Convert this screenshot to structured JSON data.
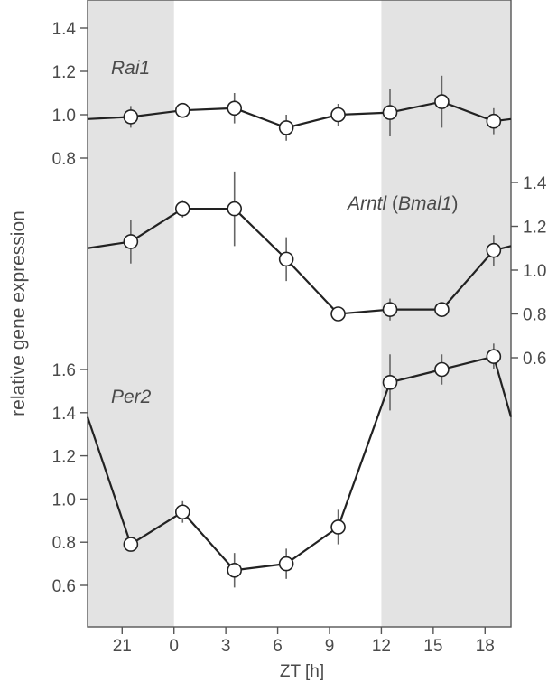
{
  "chart_data": {
    "type": "line",
    "xlabel": "ZT [h]",
    "ylabel": "relative gene expression",
    "x_ticks": [
      "21",
      "0",
      "3",
      "6",
      "9",
      "12",
      "15",
      "18"
    ],
    "x_tick_values": [
      -3,
      0,
      3,
      6,
      9,
      12,
      15,
      18
    ],
    "xlim": [
      -5,
      19.5
    ],
    "dark_periods": [
      [
        -5,
        0
      ],
      [
        12,
        19.5
      ]
    ],
    "grid": false,
    "colors": {
      "shade": "#e3e3e3",
      "line": "#222222",
      "marker_fill": "#ffffff",
      "text": "#4a4a4a"
    },
    "panels": [
      {
        "name": "Rai1",
        "y_axis_side": "left",
        "ylim": [
          0.75,
          1.5
        ],
        "y_ticks": [
          "0.8",
          "1.0",
          "1.2",
          "1.4"
        ],
        "y_tick_values": [
          0.8,
          1.0,
          1.2,
          1.4
        ],
        "points": [
          {
            "x": -2.5,
            "y": 0.99,
            "err": 0.05
          },
          {
            "x": 0.5,
            "y": 1.02,
            "err": 0.02
          },
          {
            "x": 3.5,
            "y": 1.03,
            "err": 0.07
          },
          {
            "x": 6.5,
            "y": 0.94,
            "err": 0.06
          },
          {
            "x": 9.5,
            "y": 1.0,
            "err": 0.05
          },
          {
            "x": 12.5,
            "y": 1.01,
            "err": 0.11
          },
          {
            "x": 15.5,
            "y": 1.06,
            "err": 0.12
          },
          {
            "x": 18.5,
            "y": 0.97,
            "err": 0.06
          }
        ],
        "left_edge_y": 0.98,
        "right_edge_y": 0.98
      },
      {
        "name": "Arntl",
        "label_paren": "(Bmal1)",
        "y_axis_side": "right",
        "ylim": [
          0.5,
          1.55
        ],
        "y_ticks": [
          "0.6",
          "0.8",
          "1.0",
          "1.2",
          "1.4"
        ],
        "y_tick_values": [
          0.6,
          0.8,
          1.0,
          1.2,
          1.4
        ],
        "points": [
          {
            "x": -2.5,
            "y": 1.13,
            "err": 0.1
          },
          {
            "x": 0.5,
            "y": 1.28,
            "err": 0.04
          },
          {
            "x": 3.5,
            "y": 1.28,
            "err": 0.17
          },
          {
            "x": 6.5,
            "y": 1.05,
            "err": 0.1
          },
          {
            "x": 9.5,
            "y": 0.8,
            "err": 0.03
          },
          {
            "x": 12.5,
            "y": 0.82,
            "err": 0.05
          },
          {
            "x": 15.5,
            "y": 0.82,
            "err": 0.03
          },
          {
            "x": 18.5,
            "y": 1.09,
            "err": 0.07
          }
        ],
        "left_edge_y": 1.1,
        "right_edge_y": 1.11
      },
      {
        "name": "Per2",
        "y_axis_side": "left",
        "ylim": [
          0.5,
          1.72
        ],
        "y_ticks": [
          "0.6",
          "0.8",
          "1.0",
          "1.2",
          "1.4",
          "1.6"
        ],
        "y_tick_values": [
          0.6,
          0.8,
          1.0,
          1.2,
          1.4,
          1.6
        ],
        "points": [
          {
            "x": -2.5,
            "y": 0.79,
            "err": 0.03
          },
          {
            "x": 0.5,
            "y": 0.94,
            "err": 0.05
          },
          {
            "x": 3.5,
            "y": 0.67,
            "err": 0.08
          },
          {
            "x": 6.5,
            "y": 0.7,
            "err": 0.07
          },
          {
            "x": 9.5,
            "y": 0.87,
            "err": 0.08
          },
          {
            "x": 12.5,
            "y": 1.54,
            "err": 0.13
          },
          {
            "x": 15.5,
            "y": 1.6,
            "err": 0.07
          },
          {
            "x": 18.5,
            "y": 1.66,
            "err": 0.06
          }
        ],
        "left_edge_y": 1.38,
        "right_edge_y": 1.38
      }
    ]
  }
}
